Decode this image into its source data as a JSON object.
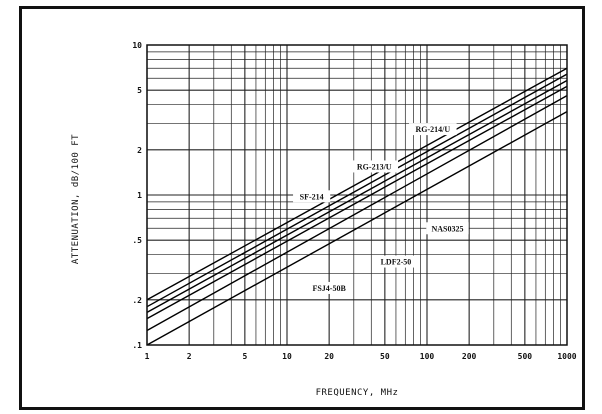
{
  "chart_data": {
    "type": "line",
    "title": "",
    "xlabel": "FREQUENCY, MHz",
    "ylabel": "ATTENUATION, dB/100 FT",
    "xscale": "log",
    "yscale": "log",
    "xlim": [
      1,
      1000
    ],
    "ylim": [
      0.1,
      10
    ],
    "grid": true,
    "x_ticks": [
      "1",
      "2",
      "5",
      "10",
      "20",
      "50",
      "100",
      "200",
      "500",
      "1000"
    ],
    "x_tick_values": [
      1,
      2,
      5,
      10,
      20,
      50,
      100,
      200,
      500,
      1000
    ],
    "y_ticks": [
      ".1",
      ".2",
      ".5",
      "1",
      "2",
      "5",
      "10"
    ],
    "y_tick_values": [
      0.1,
      0.2,
      0.5,
      1,
      2,
      5,
      10
    ],
    "series": [
      {
        "name": "RG-214/U",
        "x": [
          1,
          1000
        ],
        "y": [
          0.2,
          7.0
        ],
        "label_x": 110,
        "label_y": 2.75
      },
      {
        "name": "RG-213/U",
        "x": [
          1,
          1000
        ],
        "y": [
          0.18,
          6.4
        ],
        "label_x": 42,
        "label_y": 1.55
      },
      {
        "name": "SF-214",
        "x": [
          1,
          1000
        ],
        "y": [
          0.165,
          5.8
        ],
        "label_x": 15,
        "label_y": 0.98
      },
      {
        "name": "NAS0325",
        "x": [
          1,
          1000
        ],
        "y": [
          0.15,
          5.3
        ],
        "label_x": 140,
        "label_y": 0.6
      },
      {
        "name": "LDF2-50",
        "x": [
          1,
          1000
        ],
        "y": [
          0.125,
          4.6
        ],
        "label_x": 60,
        "label_y": 0.36
      },
      {
        "name": "FSJ4-50B",
        "x": [
          1,
          1000
        ],
        "y": [
          0.1,
          3.6
        ],
        "label_x": 20,
        "label_y": 0.24
      }
    ]
  }
}
